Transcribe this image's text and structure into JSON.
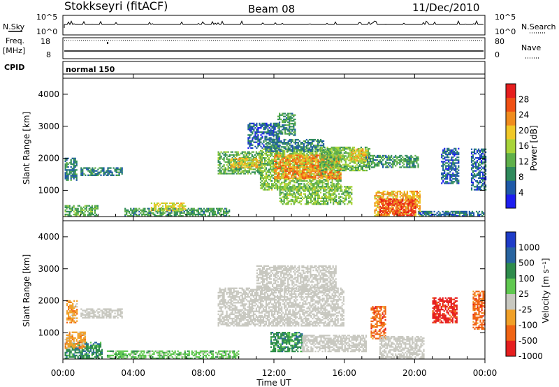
{
  "header": {
    "radar": "Stokkseyri (fitACF)",
    "beam": "Beam 08",
    "date": "11/Dec/2010"
  },
  "nsky_panel": {
    "label": "N.Sky",
    "left_ticks": [
      "10^5",
      "10^0"
    ],
    "right_ticks": [
      "10^5",
      "10^0"
    ],
    "right_label": "N.Search"
  },
  "freq_panel": {
    "label_line1": "Freq.",
    "label_line2": "[MHz]",
    "left_ticks": [
      "18",
      "8"
    ],
    "right_ticks": [
      "80",
      "0"
    ],
    "right_label": "Nave"
  },
  "cpid_panel": {
    "label": "CPID",
    "value": "normal 150"
  },
  "chart_data": [
    {
      "type": "heatmap",
      "name": "power",
      "ylabel": "Slant Range [km]",
      "ylim": [
        180,
        4500
      ],
      "yticks": [
        "1000",
        "2000",
        "3000",
        "4000"
      ],
      "x_ticks_hours": [
        0,
        4,
        8,
        12,
        16,
        20,
        24
      ],
      "colorbar": {
        "label": "Power [dB]",
        "range": [
          0,
          32
        ],
        "ticks": [
          "4",
          "8",
          "12",
          "16",
          "20",
          "24",
          "28"
        ],
        "colors": [
          "#1e1ef0",
          "#1f5aa8",
          "#2f8a5c",
          "#5fb04a",
          "#a8d43a",
          "#f0c828",
          "#f08c1e",
          "#f05014",
          "#e61e1e"
        ]
      },
      "echo_regions": [
        {
          "t": [
            0.1,
            2.0
          ],
          "r": [
            180,
            500
          ],
          "level": 12
        },
        {
          "t": [
            0.1,
            0.8
          ],
          "r": [
            1300,
            2000
          ],
          "level": 8
        },
        {
          "t": [
            1.0,
            3.4
          ],
          "r": [
            1450,
            1700
          ],
          "level": 8
        },
        {
          "t": [
            3.5,
            9.5
          ],
          "r": [
            180,
            450
          ],
          "level": 10
        },
        {
          "t": [
            5.0,
            7.0
          ],
          "r": [
            350,
            600
          ],
          "level": 18
        },
        {
          "t": [
            8.8,
            11.3
          ],
          "r": [
            1500,
            2200
          ],
          "level": 12
        },
        {
          "t": [
            9.5,
            11.3
          ],
          "r": [
            1700,
            2000
          ],
          "level": 20
        },
        {
          "t": [
            10.5,
            12.3
          ],
          "r": [
            2300,
            3100
          ],
          "level": 6
        },
        {
          "t": [
            11.2,
            15.8
          ],
          "r": [
            1000,
            2300
          ],
          "level": 14
        },
        {
          "t": [
            12.0,
            15.8
          ],
          "r": [
            1350,
            2100
          ],
          "level": 23
        },
        {
          "t": [
            11.5,
            14.8
          ],
          "r": [
            2200,
            2600
          ],
          "level": 8
        },
        {
          "t": [
            12.3,
            16.4
          ],
          "r": [
            550,
            1100
          ],
          "level": 14
        },
        {
          "t": [
            12.2,
            13.2
          ],
          "r": [
            2700,
            3400
          ],
          "level": 10
        },
        {
          "t": [
            14.6,
            17.4
          ],
          "r": [
            1600,
            2350
          ],
          "level": 13
        },
        {
          "t": [
            16.3,
            17.3
          ],
          "r": [
            1900,
            2300
          ],
          "level": 19
        },
        {
          "t": [
            17.2,
            20.2
          ],
          "r": [
            1700,
            2100
          ],
          "level": 10
        },
        {
          "t": [
            17.7,
            20.3
          ],
          "r": [
            180,
            950
          ],
          "level": 21
        },
        {
          "t": [
            18.0,
            20.0
          ],
          "r": [
            200,
            700
          ],
          "level": 28
        },
        {
          "t": [
            20.2,
            23.9
          ],
          "r": [
            180,
            350
          ],
          "level": 7
        },
        {
          "t": [
            21.5,
            22.5
          ],
          "r": [
            1200,
            2300
          ],
          "level": 6
        },
        {
          "t": [
            23.2,
            24.0
          ],
          "r": [
            1000,
            2300
          ],
          "level": 6
        }
      ]
    },
    {
      "type": "heatmap",
      "name": "velocity",
      "ylabel": "Slant Range [km]",
      "ylim": [
        180,
        4500
      ],
      "yticks": [
        "1000",
        "2000",
        "3000",
        "4000"
      ],
      "xlabel": "Time UT",
      "x_ticks": [
        "00:00",
        "04:00",
        "08:00",
        "12:00",
        "16:00",
        "20:00",
        "00:00"
      ],
      "colorbar": {
        "label": "Velocity [m s⁻¹]",
        "ticks": [
          "1000",
          "500",
          "100",
          "25",
          "-25",
          "-100",
          "-500",
          "-1000"
        ],
        "colors": [
          "#1e3cc8",
          "#2864a0",
          "#2e8c4c",
          "#60c850",
          "#c8c8c0",
          "#f0a028",
          "#f06414",
          "#e61e1e"
        ]
      },
      "echo_regions": [
        {
          "t": [
            0.1,
            2.2
          ],
          "r": [
            180,
            700
          ],
          "level": "100"
        },
        {
          "t": [
            0.1,
            1.3
          ],
          "r": [
            500,
            1000
          ],
          "level": "-100"
        },
        {
          "t": [
            0.2,
            0.8
          ],
          "r": [
            1300,
            2000
          ],
          "level": "-100"
        },
        {
          "t": [
            1.0,
            3.4
          ],
          "r": [
            1450,
            1750
          ],
          "level": "gs"
        },
        {
          "t": [
            2.5,
            10.0
          ],
          "r": [
            180,
            450
          ],
          "level": "25"
        },
        {
          "t": [
            8.8,
            16.0
          ],
          "r": [
            1200,
            2400
          ],
          "level": "gs"
        },
        {
          "t": [
            11.0,
            15.5
          ],
          "r": [
            2300,
            3100
          ],
          "level": "gs"
        },
        {
          "t": [
            11.8,
            13.6
          ],
          "r": [
            400,
            1000
          ],
          "level": "100"
        },
        {
          "t": [
            13.6,
            17.2
          ],
          "r": [
            400,
            900
          ],
          "level": "gs"
        },
        {
          "t": [
            17.5,
            18.3
          ],
          "r": [
            800,
            1800
          ],
          "level": "-500"
        },
        {
          "t": [
            18.0,
            20.5
          ],
          "r": [
            180,
            900
          ],
          "level": "gs"
        },
        {
          "t": [
            21.0,
            22.4
          ],
          "r": [
            1300,
            2100
          ],
          "level": "-1000"
        },
        {
          "t": [
            23.3,
            24.0
          ],
          "r": [
            1100,
            2300
          ],
          "level": "-500"
        }
      ]
    }
  ]
}
